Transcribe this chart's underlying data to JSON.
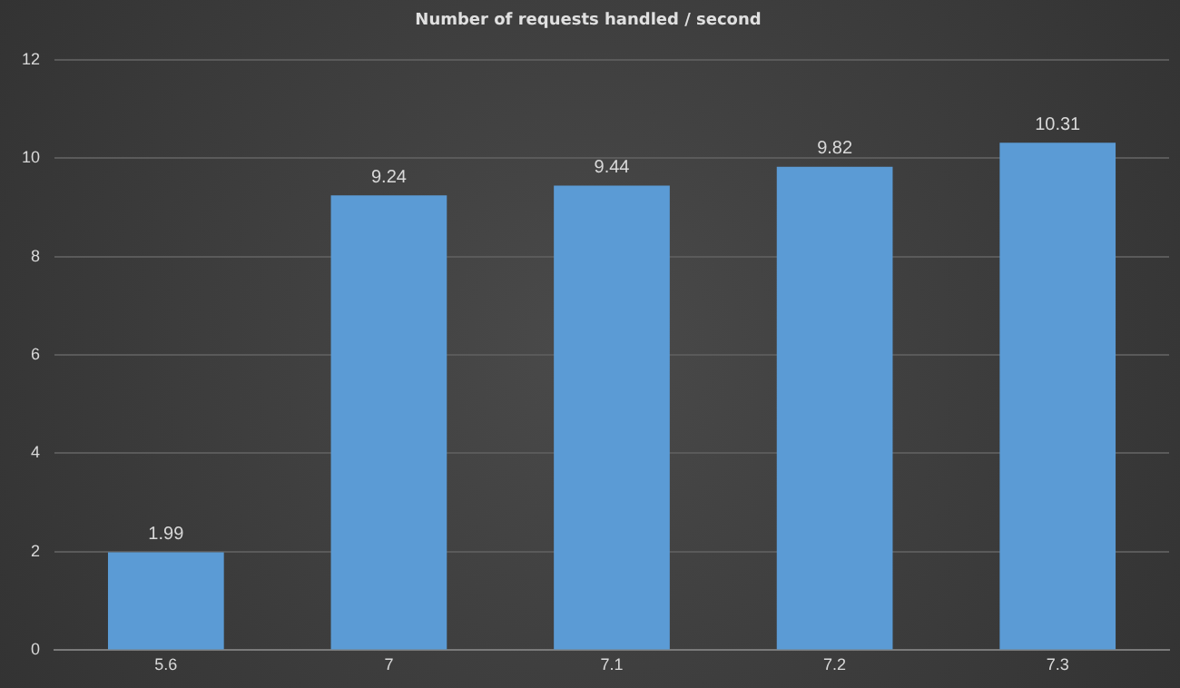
{
  "chart_data": {
    "type": "bar",
    "title": "Number of requests handled / second",
    "categories": [
      "5.6",
      "7",
      "7.1",
      "7.2",
      "7.3"
    ],
    "values": [
      1.99,
      9.24,
      9.44,
      9.82,
      10.31
    ],
    "color": "#5b9bd5",
    "ylim": [
      0,
      12
    ],
    "yticks": [
      0,
      2,
      4,
      6,
      8,
      10,
      12
    ],
    "grid": "y",
    "data_labels": true
  }
}
